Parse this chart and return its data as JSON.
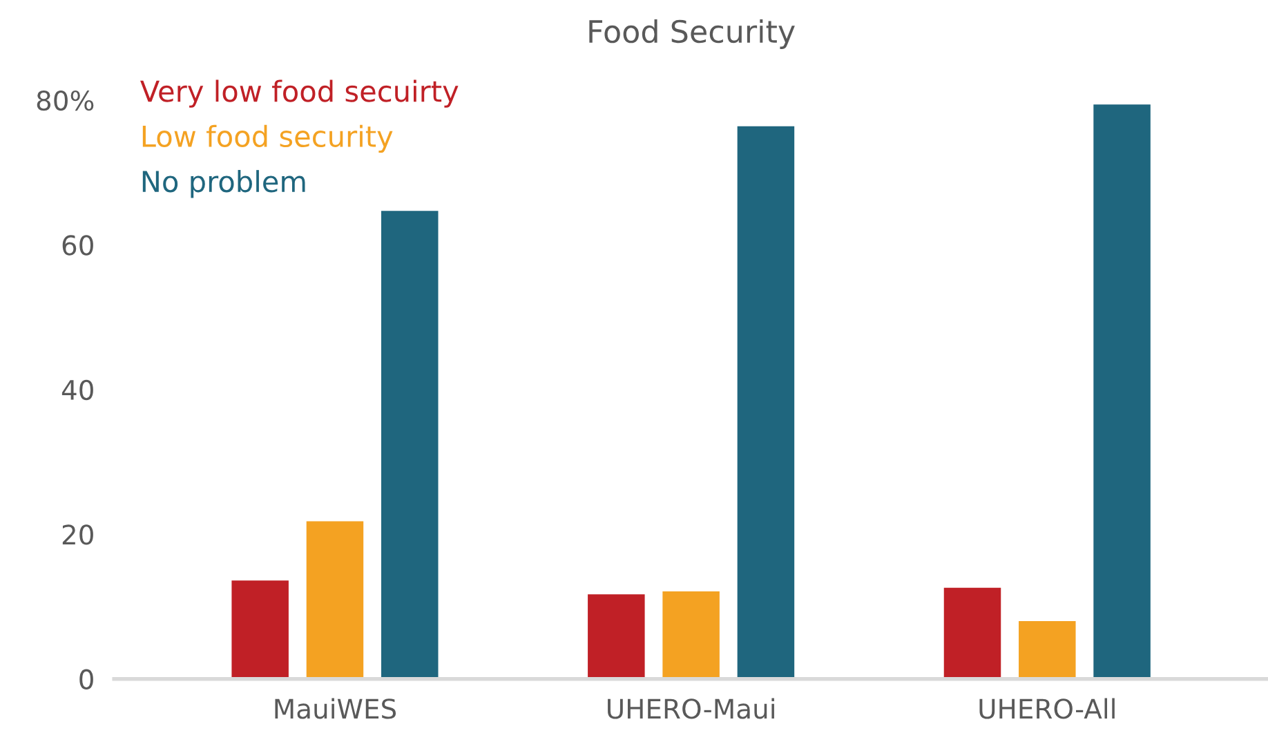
{
  "chart_data": {
    "type": "bar",
    "title": "Food Security",
    "categories": [
      "MauiWES",
      "UHERO-Maui",
      "UHERO-All"
    ],
    "series": [
      {
        "name": "Very low food secuirty",
        "color": "#c02026",
        "values": [
          13.6,
          11.7,
          12.6
        ]
      },
      {
        "name": "Low food security",
        "color": "#f4a222",
        "values": [
          21.8,
          12.1,
          8.0
        ]
      },
      {
        "name": "No problem",
        "color": "#1f667e",
        "values": [
          64.7,
          76.4,
          79.4
        ]
      }
    ],
    "ylim": [
      0,
      80
    ],
    "yticks": [
      0,
      20,
      40,
      {
        "value": 60,
        "label": "60"
      },
      {
        "value": 80,
        "label": "80%"
      }
    ],
    "grid": false,
    "legend": "top left"
  }
}
